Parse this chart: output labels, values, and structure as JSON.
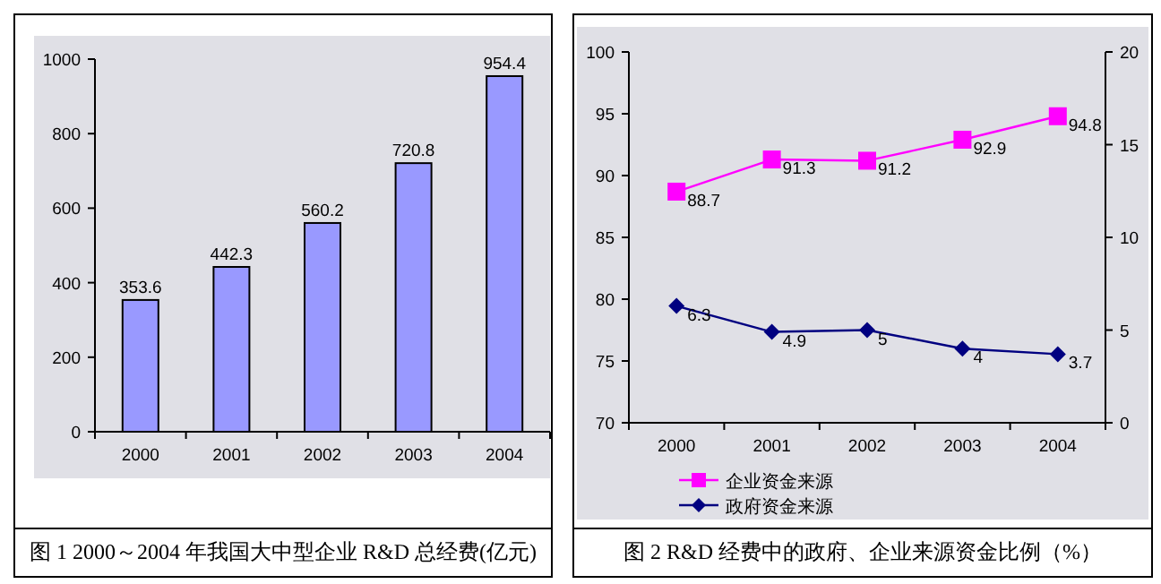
{
  "chart_data": [
    {
      "type": "bar",
      "title": "图 1 2000～2004 年我国大中型企业 R&D 总经费(亿元)",
      "categories": [
        "2000",
        "2001",
        "2002",
        "2003",
        "2004"
      ],
      "values": [
        353.6,
        442.3,
        560.2,
        720.8,
        954.4
      ],
      "color": "#9999ff",
      "ylim": [
        0,
        1000
      ],
      "yticks": [
        0,
        200,
        400,
        600,
        800,
        1000
      ],
      "data_labels": true,
      "grid": false,
      "legend": false
    },
    {
      "type": "line",
      "title": "图 2 R&D 经费中的政府、企业来源资金比例（%）",
      "categories": [
        "2000",
        "2001",
        "2002",
        "2003",
        "2004"
      ],
      "series": [
        {
          "name": "企业资金来源",
          "color": "#ff00ff",
          "values": [
            88.7,
            91.3,
            91.2,
            92.9,
            94.8
          ],
          "marker": "square"
        },
        {
          "name": "政府资金来源",
          "color": "#000080",
          "values": [
            6.3,
            4.9,
            5,
            4,
            3.7
          ],
          "axis": "y2",
          "marker": "diamond"
        }
      ],
      "ylim": [
        70,
        100
      ],
      "yticks": [
        70,
        75,
        80,
        85,
        90,
        95,
        100
      ],
      "y2lim": [
        0,
        20
      ],
      "y2ticks": [
        0,
        5,
        10,
        15,
        20
      ],
      "data_labels": true,
      "grid": false,
      "legend": "bottom"
    }
  ]
}
